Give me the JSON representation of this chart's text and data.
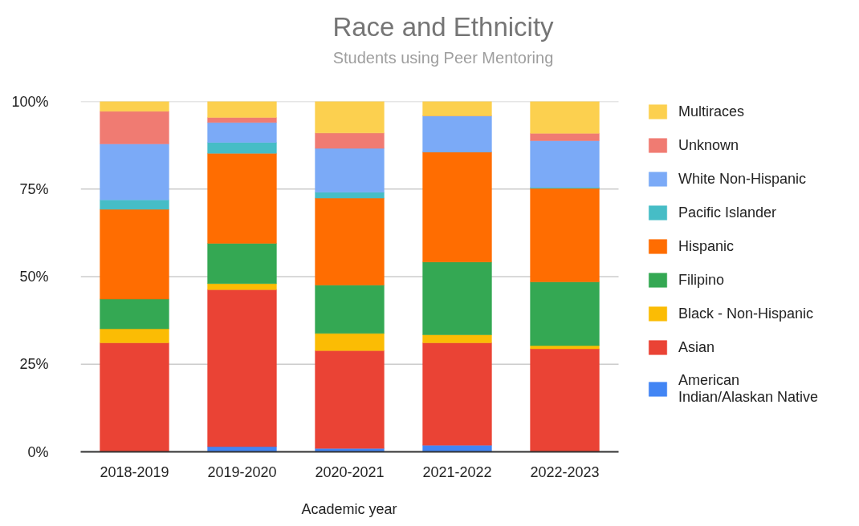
{
  "chart_data": {
    "type": "bar",
    "title": "Race and Ethnicity",
    "subtitle": "Students using Peer Mentoring",
    "xlabel": "Academic year",
    "categories": [
      "2018-2019",
      "2019-2020",
      "2020-2021",
      "2021-2022",
      "2022-2023"
    ],
    "stacked": true,
    "ylim": [
      0,
      100
    ],
    "yticks": [
      {
        "value": 0,
        "label": "0%"
      },
      {
        "value": 25,
        "label": "25%"
      },
      {
        "value": 50,
        "label": "50%"
      },
      {
        "value": 75,
        "label": "75%"
      },
      {
        "value": 100,
        "label": "100%"
      }
    ],
    "grid": "y",
    "legend": "right",
    "series": [
      {
        "name": "American Indian/Alaskan Native",
        "color": "#4285f4",
        "values": [
          0,
          1.5,
          1.0,
          1.9,
          0
        ]
      },
      {
        "name": "Asian",
        "color": "#ea4335",
        "values": [
          31.1,
          44.8,
          27.9,
          29.2,
          29.4
        ]
      },
      {
        "name": "Black - Non-Hispanic",
        "color": "#fbbc04",
        "values": [
          4.0,
          1.7,
          4.9,
          2.3,
          0.9
        ]
      },
      {
        "name": "Filipino",
        "color": "#34a853",
        "values": [
          8.5,
          11.5,
          13.8,
          20.8,
          18.2
        ]
      },
      {
        "name": "Hispanic",
        "color": "#ff6d01",
        "values": [
          25.6,
          25.7,
          24.8,
          31.4,
          26.7
        ]
      },
      {
        "name": "Pacific Islander",
        "color": "#46bdc6",
        "values": [
          2.7,
          3.1,
          1.7,
          0,
          0.3
        ]
      },
      {
        "name": "White Non-Hispanic",
        "color": "#7baaf7",
        "values": [
          16.0,
          5.7,
          12.5,
          10.3,
          13.3
        ]
      },
      {
        "name": "Unknown",
        "color": "#f07b72",
        "values": [
          9.3,
          1.4,
          4.4,
          0,
          2.1
        ]
      },
      {
        "name": "Multiraces",
        "color": "#fcd04f",
        "values": [
          2.8,
          4.6,
          9.0,
          4.1,
          9.1
        ]
      }
    ]
  }
}
